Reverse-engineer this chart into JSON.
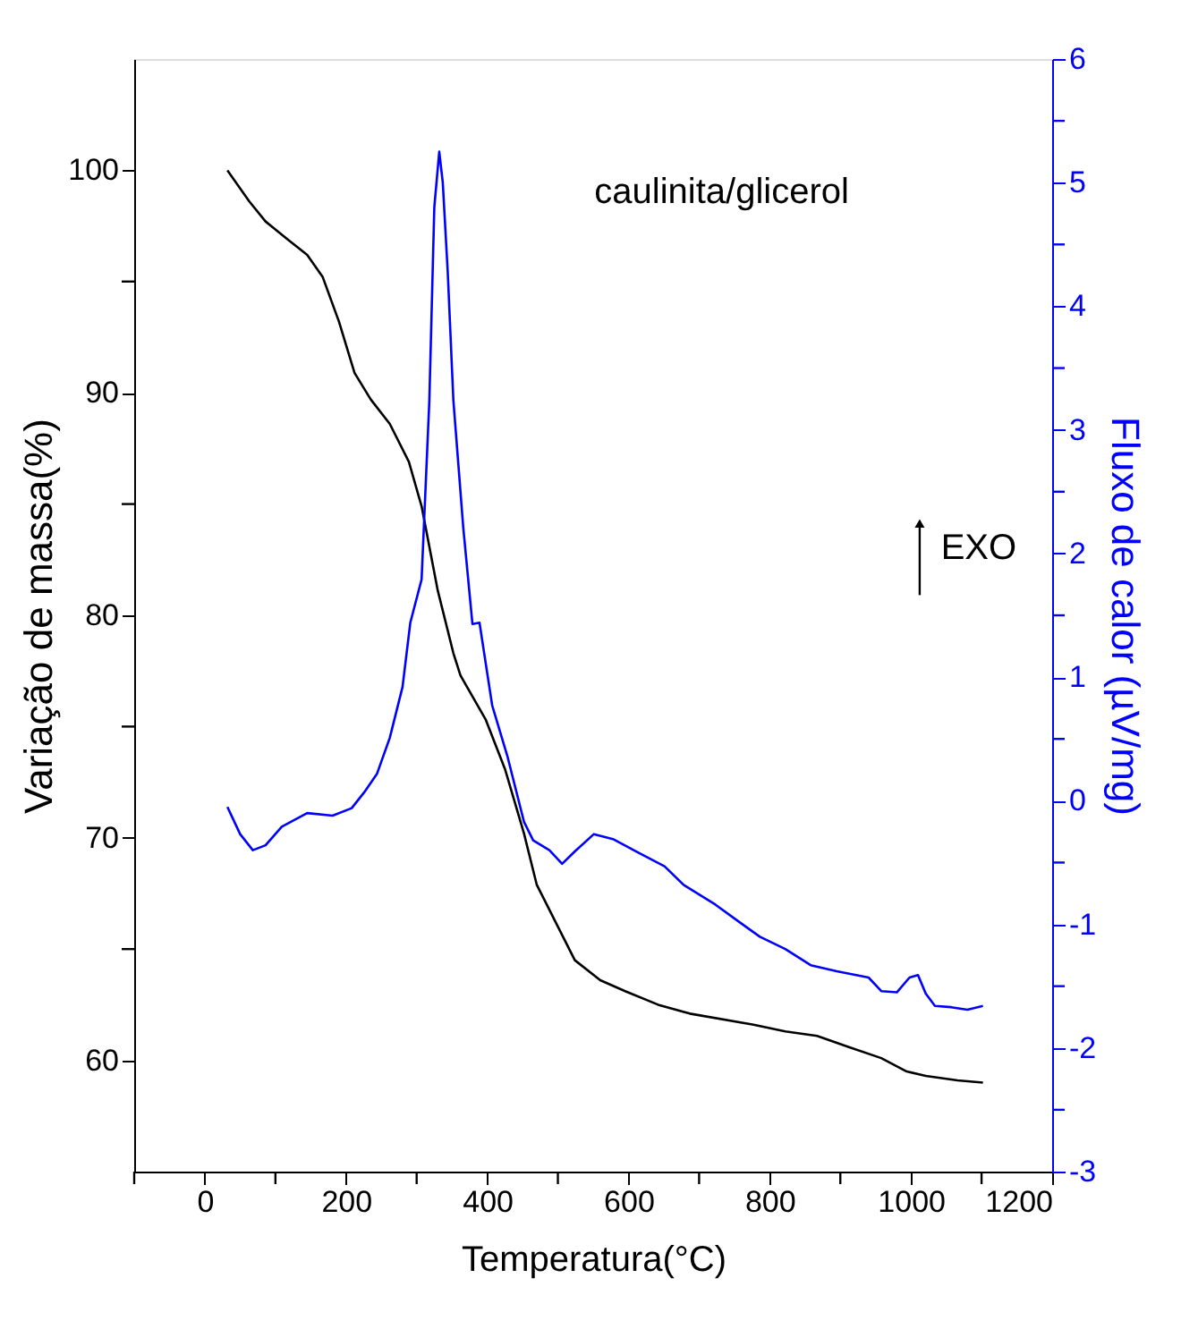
{
  "chart_data": {
    "type": "line",
    "xlabel": "Temperatura(°C)",
    "ylabel": "Variação de massa(%)",
    "y2label": "Fluxo de calor (µV/mg)",
    "annotations": [
      "caulinita/glicerol",
      "EXO"
    ],
    "xlim": [
      -100,
      1200
    ],
    "xticks": [
      {
        "value": -100,
        "label": null
      },
      0,
      {
        "value": 100,
        "label": null
      },
      200,
      {
        "value": 300,
        "label": null
      },
      400,
      {
        "value": 500,
        "label": null
      },
      600,
      {
        "value": 700,
        "label": null
      },
      800,
      {
        "value": 900,
        "label": null
      },
      1000,
      {
        "value": 1100,
        "label": null
      },
      1200
    ],
    "ylim": [
      55,
      105
    ],
    "yticks": [
      60,
      {
        "value": 65,
        "label": null
      },
      70,
      {
        "value": 75,
        "label": null
      },
      80,
      {
        "value": 85,
        "label": null
      },
      90,
      {
        "value": 95,
        "label": null
      },
      100
    ],
    "y2lim": [
      -3,
      6
    ],
    "y2ticks": [
      -3,
      {
        "value": -2.5,
        "label": null
      },
      -2,
      {
        "value": -1.5,
        "label": null
      },
      -1,
      {
        "value": -0.5,
        "label": null
      },
      0,
      {
        "value": 0.5,
        "label": null
      },
      1,
      {
        "value": 1.5,
        "label": null
      },
      2,
      {
        "value": 2.5,
        "label": null
      },
      3,
      {
        "value": 3.5,
        "label": null
      },
      4,
      {
        "value": 4.5,
        "label": null
      },
      5,
      {
        "value": 5.5,
        "label": null
      },
      6
    ],
    "series": [
      {
        "color": "#000000",
        "x": [
          32,
          63,
          86,
          117,
          145,
          167,
          190,
          212,
          235,
          262,
          289,
          307,
          330,
          352,
          362,
          398,
          425,
          452,
          470,
          497,
          524,
          560,
          596,
          642,
          687,
          777,
          822,
          867,
          912,
          958,
          994,
          1021,
          1066,
          1102
        ],
        "values": [
          100,
          98.6,
          97.7,
          96.9,
          96.2,
          95.2,
          93.2,
          90.9,
          89.7,
          88.6,
          86.9,
          84.9,
          81.1,
          78.3,
          77.3,
          75.3,
          73.1,
          70.2,
          67.9,
          66.2,
          64.5,
          63.6,
          63.1,
          62.5,
          62.1,
          61.6,
          61.3,
          61.1,
          60.6,
          60.1,
          59.5,
          59.3,
          59.1,
          59.0
        ]
      },
      {
        "color": "#0000ff",
        "axis": "y2",
        "x": [
          32,
          50,
          68,
          86,
          109,
          145,
          181,
          208,
          226,
          244,
          262,
          280,
          291,
          307,
          318,
          325,
          332,
          337,
          344,
          352,
          366,
          379,
          389,
          407,
          429,
          452,
          465,
          488,
          506,
          524,
          551,
          578,
          614,
          651,
          678,
          723,
          759,
          786,
          822,
          858,
          895,
          940,
          958,
          980,
          998,
          1010,
          1021,
          1034,
          1057,
          1080,
          1102
        ],
        "values": [
          -0.05,
          -0.27,
          -0.4,
          -0.36,
          -0.21,
          -0.1,
          -0.12,
          -0.06,
          0.07,
          0.22,
          0.51,
          0.92,
          1.44,
          1.79,
          3.24,
          4.8,
          5.25,
          5.0,
          4.28,
          3.24,
          2.21,
          1.43,
          1.44,
          0.77,
          0.35,
          -0.17,
          -0.32,
          -0.4,
          -0.51,
          -0.41,
          -0.27,
          -0.31,
          -0.42,
          -0.53,
          -0.68,
          -0.84,
          -0.99,
          -1.1,
          -1.2,
          -1.33,
          -1.38,
          -1.43,
          -1.54,
          -1.55,
          -1.43,
          -1.41,
          -1.56,
          -1.66,
          -1.67,
          -1.69,
          -1.66
        ]
      }
    ]
  }
}
